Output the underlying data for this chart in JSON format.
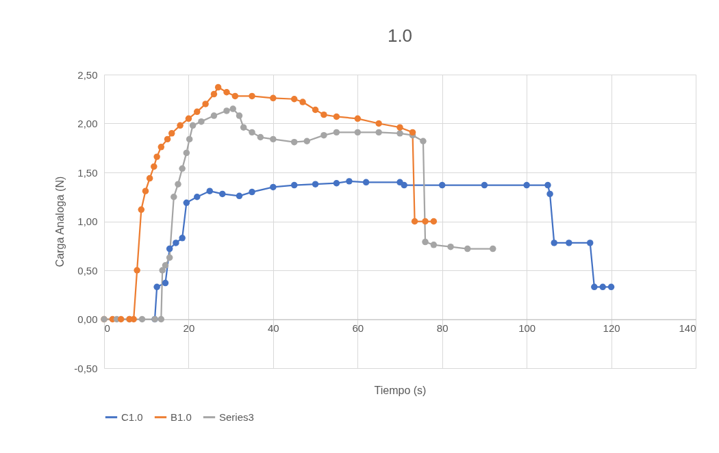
{
  "chart_data": {
    "type": "line",
    "title": "1.0",
    "xlabel": "Tiempo (s)",
    "ylabel": "Carga Analoga (N)",
    "xlim": [
      0,
      140
    ],
    "xticks": [
      0,
      20,
      40,
      60,
      80,
      100,
      120,
      140
    ],
    "ylim": [
      -0.5,
      2.5
    ],
    "yticks": [
      {
        "value": -0.5,
        "label": "-0,50"
      },
      {
        "value": 0,
        "label": "0,00"
      },
      {
        "value": 0.5,
        "label": "0,50"
      },
      {
        "value": 1,
        "label": "1,00"
      },
      {
        "value": 1.5,
        "label": "1,50"
      },
      {
        "value": 2,
        "label": "2,00"
      },
      {
        "value": 2.5,
        "label": "2,50"
      }
    ],
    "grid": true,
    "legend": "bottom",
    "marker": "circle",
    "line_style": "solid",
    "series": [
      {
        "name": "C1.0",
        "color": "#4472c4",
        "x": [
          12,
          12.5,
          14.5,
          15.5,
          17,
          18.5,
          19.5,
          22,
          25,
          28,
          32,
          35,
          40,
          45,
          50,
          55,
          58,
          62,
          70,
          71,
          80,
          90,
          100,
          105,
          105.5,
          106.5,
          110,
          115,
          116,
          118,
          120
        ],
        "values": [
          0,
          0.33,
          0.37,
          0.72,
          0.78,
          0.83,
          1.19,
          1.25,
          1.31,
          1.28,
          1.26,
          1.3,
          1.35,
          1.37,
          1.38,
          1.39,
          1.41,
          1.4,
          1.4,
          1.37,
          1.37,
          1.37,
          1.37,
          1.37,
          1.28,
          0.78,
          0.78,
          0.78,
          0.33,
          0.33,
          0.33
        ]
      },
      {
        "name": "B1.0",
        "color": "#ed7d31",
        "x": [
          0,
          2,
          4,
          6,
          7,
          7.8,
          8.8,
          9.8,
          10.8,
          11.8,
          12.5,
          13.5,
          15,
          16,
          18,
          20,
          22,
          24,
          26,
          27,
          29,
          31,
          35,
          40,
          45,
          47,
          50,
          52,
          55,
          60,
          65,
          70,
          73,
          73.5,
          76,
          78
        ],
        "values": [
          0,
          0,
          0,
          0,
          0,
          0.5,
          1.12,
          1.31,
          1.44,
          1.56,
          1.66,
          1.76,
          1.84,
          1.9,
          1.98,
          2.05,
          2.12,
          2.2,
          2.3,
          2.37,
          2.32,
          2.28,
          2.28,
          2.26,
          2.25,
          2.22,
          2.14,
          2.09,
          2.07,
          2.05,
          2,
          1.96,
          1.91,
          1,
          1,
          1
        ]
      },
      {
        "name": "Series3",
        "color": "#a5a5a5",
        "x": [
          0,
          3,
          6,
          9,
          12,
          13.5,
          13.8,
          14.5,
          15.5,
          16.5,
          17.5,
          18.5,
          19.5,
          20.2,
          21,
          23,
          26,
          29,
          30.5,
          32,
          33,
          35,
          37,
          40,
          45,
          48,
          52,
          55,
          60,
          65,
          70,
          73,
          75.5,
          76,
          78,
          82,
          86,
          92
        ],
        "values": [
          0,
          0,
          0,
          0,
          0,
          0,
          0.5,
          0.55,
          0.63,
          1.25,
          1.38,
          1.54,
          1.7,
          1.84,
          1.98,
          2.02,
          2.08,
          2.13,
          2.15,
          2.08,
          1.96,
          1.91,
          1.86,
          1.84,
          1.81,
          1.82,
          1.88,
          1.91,
          1.91,
          1.91,
          1.9,
          1.88,
          1.82,
          0.79,
          0.76,
          0.74,
          0.72,
          0.72
        ]
      }
    ]
  }
}
